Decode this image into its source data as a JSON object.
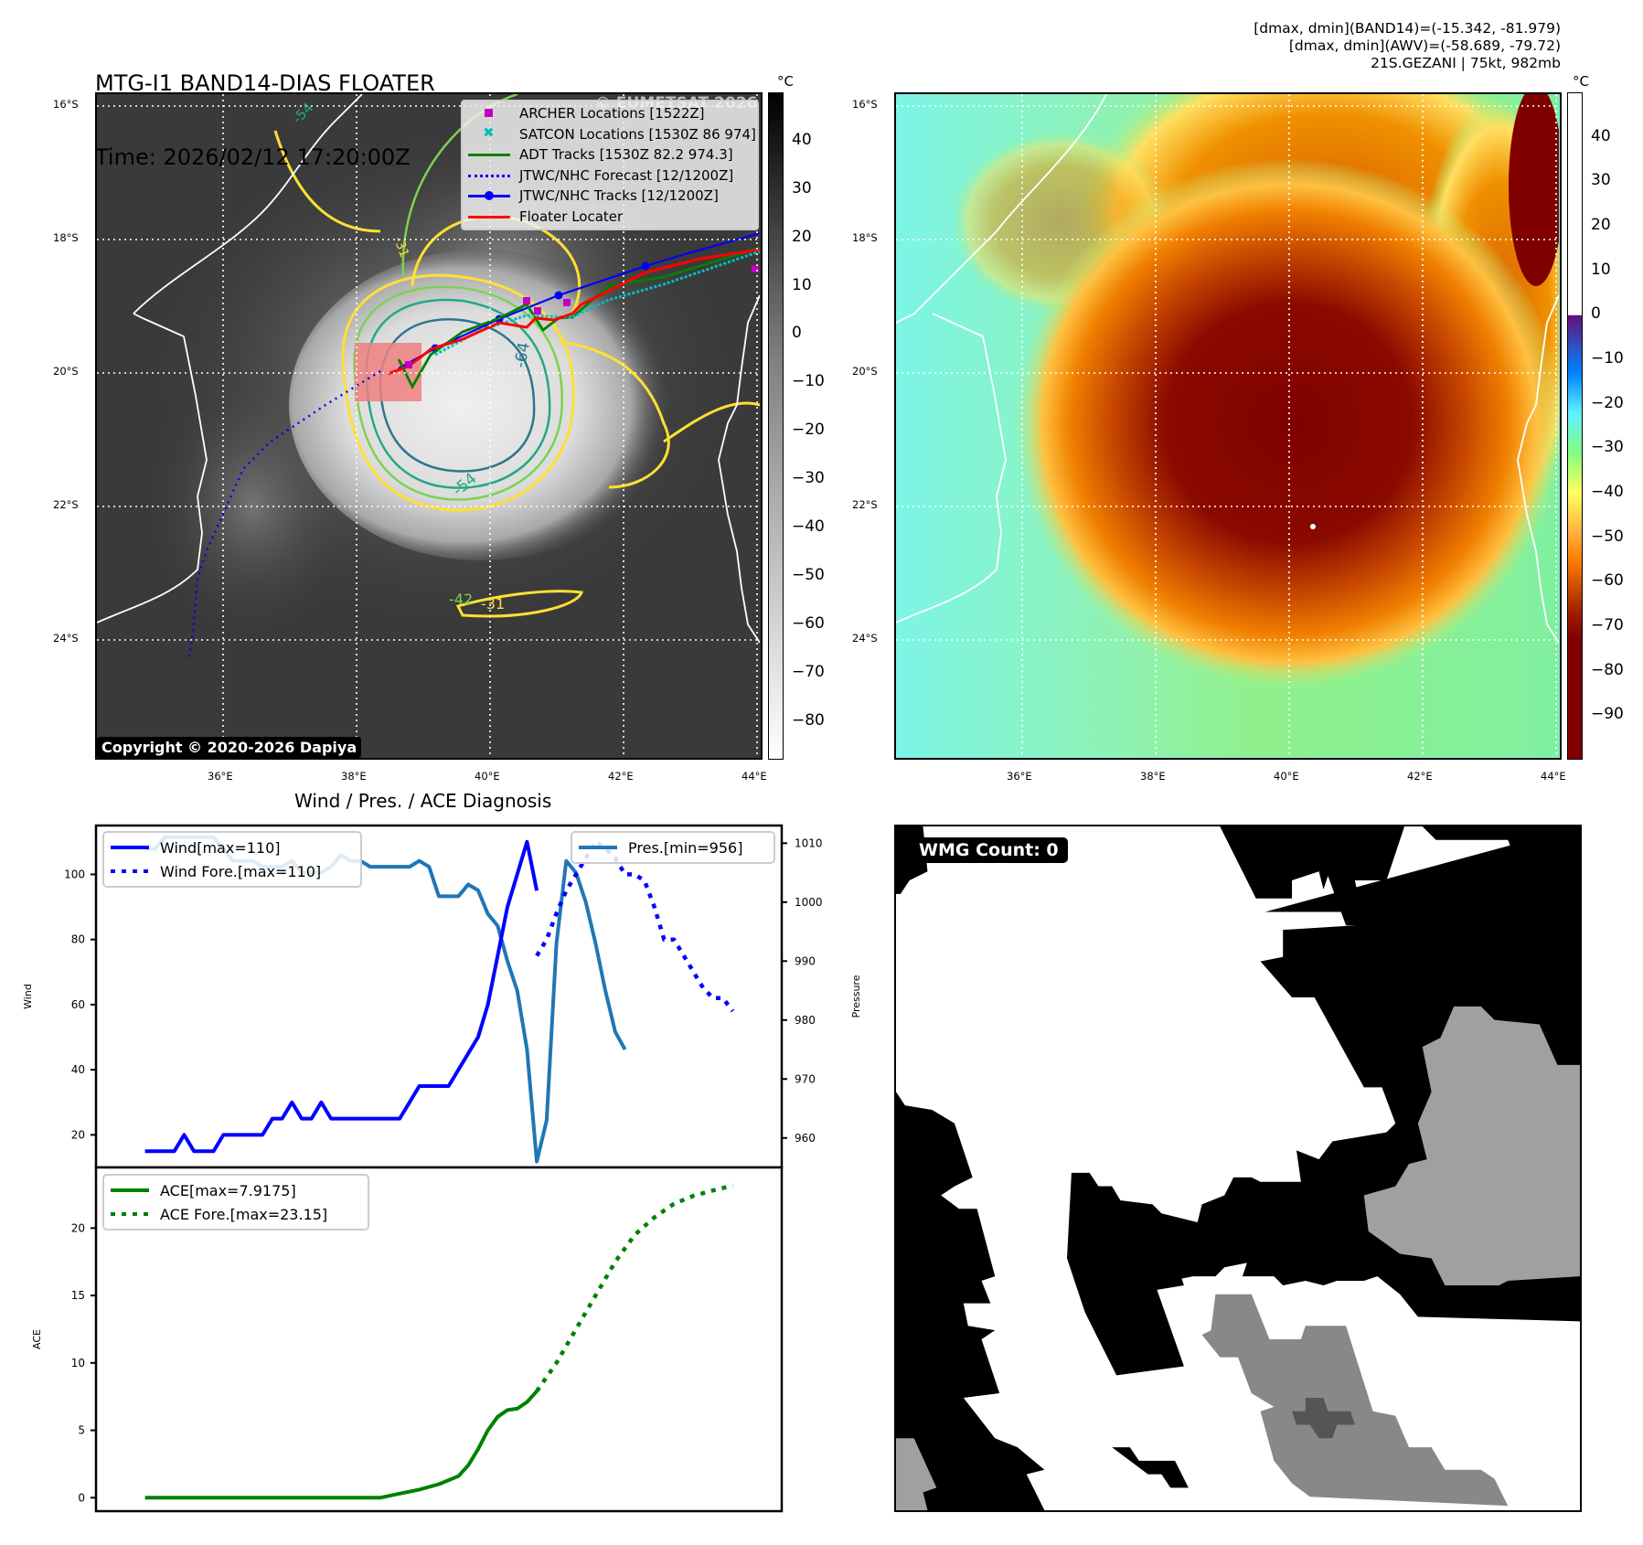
{
  "header": {
    "title_line1": "MTG-I1 BAND14-DIAS FLOATER",
    "title_line2": "Time: 2026/02/12 17:20:00Z",
    "stats_line1": "[dmax, dmin](BAND14)=(-15.342, -81.979)",
    "stats_line2": "[dmax, dmin](AWV)=(-58.689, -79.72)",
    "stats_line3": "21S.GEZANI | 75kt, 982mb"
  },
  "left_map": {
    "lat_ticks": [
      "16°S",
      "18°S",
      "20°S",
      "22°S",
      "24°S"
    ],
    "lon_ticks": [
      "36°E",
      "38°E",
      "40°E",
      "42°E",
      "44°E"
    ],
    "watermark": "© EUMETSAT 2026",
    "copyright": "Copyright © 2020-2026 Dapiya",
    "contour_labels": [
      "-54",
      "-64",
      "-54",
      "-31",
      "-42",
      "-31",
      "-64"
    ],
    "legend": [
      {
        "label": "ARCHER Locations [1522Z]",
        "icon": "magenta-square-marker",
        "color": "#c000c0"
      },
      {
        "label": "SATCON Locations [1530Z 86 974]",
        "icon": "cyan-x-marker",
        "color": "#00bfbf"
      },
      {
        "label": "ADT Tracks [1530Z 82.2 974.3]",
        "icon": "green-line",
        "color": "#008000"
      },
      {
        "label": "JTWC/NHC Forecast [12/1200Z]",
        "icon": "blue-dotted-line",
        "color": "#0000ff"
      },
      {
        "label": "JTWC/NHC Tracks [12/1200Z]",
        "icon": "blue-line-dot-marker",
        "color": "#0000ff"
      },
      {
        "label": "Floater Locater",
        "icon": "red-line",
        "color": "#ff0000"
      }
    ],
    "colorbar": {
      "unit": "°C",
      "ticks": [
        "40",
        "30",
        "20",
        "10",
        "0",
        "−10",
        "−20",
        "−30",
        "−40",
        "−50",
        "−60",
        "−70",
        "−80"
      ],
      "range": [
        -88,
        50
      ]
    }
  },
  "right_map": {
    "lat_ticks": [
      "16°S",
      "18°S",
      "20°S",
      "22°S",
      "24°S"
    ],
    "lon_ticks": [
      "36°E",
      "38°E",
      "40°E",
      "42°E",
      "44°E"
    ],
    "colorbar": {
      "unit": "°C",
      "ticks": [
        "40",
        "30",
        "20",
        "10",
        "0",
        "−10",
        "−20",
        "−30",
        "−40",
        "−50",
        "−60",
        "−70",
        "−80",
        "−90"
      ],
      "range": [
        -100,
        50
      ]
    },
    "colors": {
      "cold": "#800000",
      "warm": "#ff8000",
      "mid": "#ffff60",
      "cool": "#80ff80",
      "clear": "#80ffe8"
    }
  },
  "wmg": {
    "badge": "WMG Count: 0"
  },
  "chart_data": [
    {
      "type": "line",
      "title": "Wind / Pres. / ACE Diagnosis",
      "ylabel": "Wind",
      "y2label": "Pressure",
      "ylim": [
        10,
        115
      ],
      "y2lim": [
        955,
        1013
      ],
      "yticks": [
        "20",
        "40",
        "60",
        "80",
        "100"
      ],
      "y2ticks": [
        "960",
        "970",
        "980",
        "990",
        "1000",
        "1010"
      ],
      "legend_left": [
        "Wind[max=110]",
        "Wind Fore.[max=110]"
      ],
      "legend_right": [
        "Pres.[min=956]"
      ],
      "series": [
        {
          "name": "Wind",
          "color": "#0000ff",
          "style": "solid",
          "x": [
            0,
            1,
            2,
            3,
            4,
            5,
            6,
            7,
            8,
            9,
            10,
            11,
            12,
            13,
            14,
            15,
            16,
            17,
            18,
            19,
            20,
            21,
            22,
            23,
            24,
            25,
            26,
            27,
            28,
            29,
            30,
            31,
            32,
            33,
            34,
            35,
            36,
            37,
            38,
            39,
            40
          ],
          "values": [
            15,
            15,
            15,
            15,
            20,
            15,
            15,
            15,
            20,
            20,
            20,
            20,
            20,
            25,
            25,
            30,
            25,
            25,
            30,
            25,
            25,
            25,
            25,
            25,
            25,
            25,
            25,
            30,
            35,
            35,
            35,
            35,
            40,
            45,
            50,
            60,
            75,
            90,
            100,
            110,
            95
          ]
        },
        {
          "name": "Wind Fore.",
          "color": "#0000ff",
          "style": "dotted",
          "x": [
            40,
            41,
            42,
            43,
            44,
            45,
            46,
            47,
            48,
            49,
            50,
            51,
            52,
            53,
            54,
            55,
            56,
            57,
            58,
            59,
            60
          ],
          "values": [
            75,
            80,
            88,
            95,
            100,
            105,
            110,
            108,
            105,
            100,
            100,
            98,
            90,
            80,
            80,
            75,
            70,
            65,
            62,
            62,
            58
          ]
        },
        {
          "name": "Pres.",
          "color": "#1f77b4",
          "style": "solid",
          "axis": "right",
          "x": [
            0,
            1,
            2,
            3,
            4,
            5,
            6,
            7,
            8,
            9,
            10,
            11,
            12,
            13,
            14,
            15,
            16,
            17,
            18,
            19,
            20,
            21,
            22,
            23,
            24,
            25,
            26,
            27,
            28,
            29,
            30,
            31,
            32,
            33,
            34,
            35,
            36,
            37,
            38,
            39,
            40,
            41,
            42,
            43,
            44,
            45,
            46,
            47,
            48,
            49
          ],
          "values": [
            1009,
            1009,
            1011,
            1011,
            1011,
            1011,
            1011,
            1011,
            1009,
            1007,
            1007,
            1007,
            1006,
            1006,
            1006,
            1007,
            1005,
            1005,
            1005,
            1006,
            1008,
            1007,
            1007,
            1006,
            1006,
            1006,
            1006,
            1006,
            1007,
            1006,
            1001,
            1001,
            1001,
            1003,
            1002,
            998,
            996,
            990,
            985,
            975,
            956,
            963,
            993,
            1007,
            1005,
            1000,
            993,
            985,
            978,
            975
          ]
        }
      ]
    },
    {
      "type": "line",
      "ylabel": "ACE",
      "ylim": [
        -1,
        24.5
      ],
      "yticks": [
        "0",
        "5",
        "10",
        "15",
        "20"
      ],
      "legend": [
        "ACE[max=7.9175]",
        "ACE Fore.[max=23.15]"
      ],
      "series": [
        {
          "name": "ACE",
          "color": "#008000",
          "style": "solid",
          "x": [
            0,
            4,
            8,
            12,
            16,
            20,
            24,
            26,
            28,
            30,
            32,
            33,
            34,
            35,
            36,
            37,
            38,
            39,
            40
          ],
          "values": [
            0,
            0,
            0,
            0,
            0,
            0,
            0,
            0.3,
            0.6,
            1.0,
            1.6,
            2.4,
            3.6,
            5.0,
            6.0,
            6.5,
            6.6,
            7.1,
            7.9
          ]
        },
        {
          "name": "ACE Fore.",
          "color": "#008000",
          "style": "dotted",
          "x": [
            40,
            42,
            44,
            46,
            48,
            50,
            52,
            54,
            56,
            58,
            60
          ],
          "values": [
            7.9,
            10.0,
            12.5,
            15.0,
            17.5,
            19.5,
            20.8,
            21.8,
            22.4,
            22.8,
            23.15
          ]
        }
      ]
    }
  ]
}
